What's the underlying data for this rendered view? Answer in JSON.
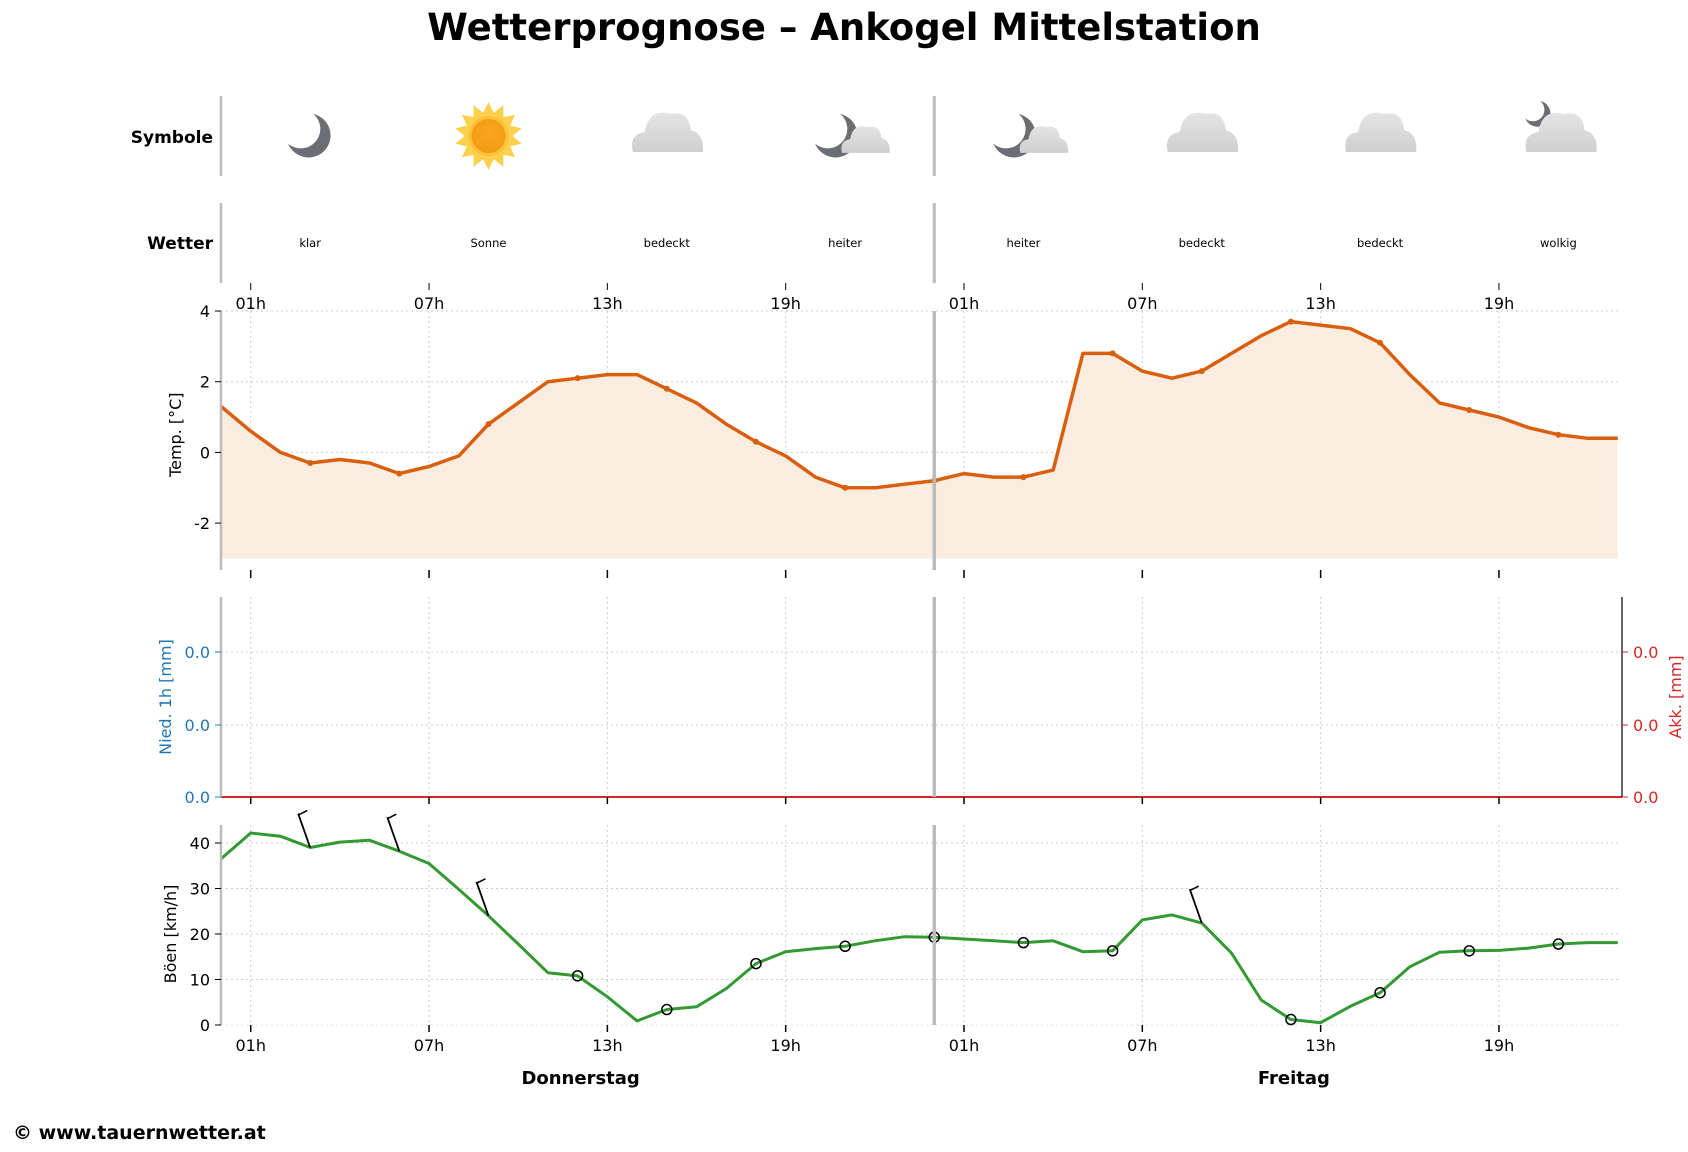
{
  "header": {
    "title": "Wetterprognose – Ankogel Mittelstation"
  },
  "footer": {
    "copyright": "© www.tauernwetter.at"
  },
  "rows": {
    "symbols_label": "Symbole",
    "weather_label": "Wetter"
  },
  "forecast_blocks": [
    {
      "hour": 3,
      "icon": "moon-icon",
      "text": "klar"
    },
    {
      "hour": 9,
      "icon": "sun-icon",
      "text": "Sonne"
    },
    {
      "hour": 15,
      "icon": "cloud-icon",
      "text": "bedeckt"
    },
    {
      "hour": 21,
      "icon": "moon-cloud-icon",
      "text": "heiter"
    },
    {
      "hour": 27,
      "icon": "moon-cloud-icon",
      "text": "heiter"
    },
    {
      "hour": 33,
      "icon": "cloud-icon",
      "text": "bedeckt"
    },
    {
      "hour": 39,
      "icon": "cloud-icon",
      "text": "bedeckt"
    },
    {
      "hour": 45,
      "icon": "moon-behind-cloud-icon",
      "text": "wolkig"
    }
  ],
  "days": [
    {
      "label": "Donnerstag",
      "center_hour": 12
    },
    {
      "label": "Freitag",
      "center_hour": 36
    }
  ],
  "colors": {
    "temperature": "#d95f0e",
    "temperature_fill": "#fbece0",
    "precip_axis": "#1f77b4",
    "accum_axis": "#d62728",
    "gusts": "#339933",
    "separator": "#bbbbbb",
    "grid": "#cccccc"
  },
  "chart_data": [
    {
      "type": "area",
      "title": "Temperatur",
      "ylabel": "Temp. [°C]",
      "ylim": [
        -3,
        4
      ],
      "yticks": [
        -2,
        0,
        2,
        4
      ],
      "xtick_labels": [
        "01h",
        "07h",
        "13h",
        "19h",
        "01h",
        "07h",
        "13h",
        "19h"
      ],
      "xtick_hours": [
        1,
        7,
        13,
        19,
        25,
        31,
        37,
        43
      ],
      "x_hours": [
        0,
        1,
        2,
        3,
        4,
        5,
        6,
        7,
        8,
        9,
        10,
        11,
        12,
        13,
        14,
        15,
        16,
        17,
        18,
        19,
        20,
        21,
        22,
        23,
        24,
        25,
        26,
        27,
        28,
        29,
        30,
        31,
        32,
        33,
        34,
        35,
        36,
        37,
        38,
        39,
        40,
        41,
        42,
        43,
        44,
        45,
        46,
        47
      ],
      "values": [
        1.3,
        0.6,
        0.0,
        -0.3,
        -0.2,
        -0.3,
        -0.6,
        -0.4,
        -0.1,
        0.8,
        1.4,
        2.0,
        2.1,
        2.2,
        2.2,
        1.8,
        1.4,
        0.8,
        0.3,
        -0.1,
        -0.7,
        -1.0,
        -1.0,
        -0.9,
        -0.8,
        -0.6,
        -0.7,
        -0.7,
        -0.5,
        2.8,
        2.8,
        2.3,
        2.1,
        2.3,
        2.8,
        3.3,
        3.7,
        3.6,
        3.5,
        3.1,
        2.2,
        1.4,
        1.2,
        1.0,
        0.7,
        0.5,
        0.4,
        0.4
      ],
      "marker_hours": [
        3,
        6,
        9,
        12,
        15,
        18,
        21,
        24,
        27,
        30,
        33,
        36,
        39,
        42,
        45
      ],
      "grid": true
    },
    {
      "type": "bar",
      "title": "Niederschlag",
      "ylabel": "Nied. 1h [mm]",
      "ylabel_right": "Akk. [mm]",
      "yticks_left": [
        "0.0",
        "0.0",
        "0.0"
      ],
      "yticks_right": [
        "0.0",
        "0.0",
        "0.0"
      ],
      "precip_1h": [
        0,
        0,
        0,
        0,
        0,
        0,
        0,
        0,
        0,
        0,
        0,
        0,
        0,
        0,
        0,
        0,
        0,
        0,
        0,
        0,
        0,
        0,
        0,
        0,
        0,
        0,
        0,
        0,
        0,
        0,
        0,
        0,
        0,
        0,
        0,
        0,
        0,
        0,
        0,
        0,
        0,
        0,
        0,
        0,
        0,
        0,
        0,
        0
      ],
      "accumulated": [
        0,
        0,
        0,
        0,
        0,
        0,
        0,
        0,
        0,
        0,
        0,
        0,
        0,
        0,
        0,
        0,
        0,
        0,
        0,
        0,
        0,
        0,
        0,
        0,
        0,
        0,
        0,
        0,
        0,
        0,
        0,
        0,
        0,
        0,
        0,
        0,
        0,
        0,
        0,
        0,
        0,
        0,
        0,
        0,
        0,
        0,
        0,
        0
      ],
      "grid": true
    },
    {
      "type": "line",
      "title": "Böen",
      "ylabel": "Böen [km/h]",
      "ylim": [
        0,
        44
      ],
      "yticks": [
        0,
        10,
        20,
        30,
        40
      ],
      "xtick_labels": [
        "01h",
        "07h",
        "13h",
        "19h",
        "01h",
        "07h",
        "13h",
        "19h"
      ],
      "xtick_hours": [
        1,
        7,
        13,
        19,
        25,
        31,
        37,
        43
      ],
      "x_hours": [
        0,
        1,
        2,
        3,
        4,
        5,
        6,
        7,
        8,
        9,
        10,
        11,
        12,
        13,
        14,
        15,
        16,
        17,
        18,
        19,
        20,
        21,
        22,
        23,
        24,
        25,
        26,
        27,
        28,
        29,
        30,
        31,
        32,
        33,
        34,
        35,
        36,
        37,
        38,
        39,
        40,
        41,
        42,
        43,
        44,
        45,
        46,
        47
      ],
      "values": [
        36.5,
        42.2,
        41.5,
        39.0,
        40.2,
        40.6,
        38.2,
        35.5,
        29.8,
        24.0,
        17.8,
        11.5,
        10.8,
        6.2,
        0.9,
        3.4,
        4.0,
        8.0,
        13.5,
        16.1,
        16.8,
        17.3,
        18.5,
        19.4,
        19.3,
        18.9,
        18.5,
        18.1,
        18.5,
        16.1,
        16.3,
        23.1,
        24.2,
        22.4,
        15.8,
        5.5,
        1.2,
        0.5,
        4.1,
        7.1,
        12.8,
        16.0,
        16.3,
        16.4,
        16.9,
        17.8,
        18.1,
        18.1
      ],
      "wind_barbs": [
        {
          "hour": 3,
          "speed_kmh": 39.0,
          "type": "barb"
        },
        {
          "hour": 6,
          "speed_kmh": 38.2,
          "type": "barb"
        },
        {
          "hour": 9,
          "speed_kmh": 24.0,
          "type": "barb"
        },
        {
          "hour": 12,
          "speed_kmh": 10.8,
          "type": "calm"
        },
        {
          "hour": 15,
          "speed_kmh": 3.4,
          "type": "calm"
        },
        {
          "hour": 18,
          "speed_kmh": 13.5,
          "type": "calm"
        },
        {
          "hour": 21,
          "speed_kmh": 17.3,
          "type": "calm"
        },
        {
          "hour": 24,
          "speed_kmh": 19.3,
          "type": "calm"
        },
        {
          "hour": 27,
          "speed_kmh": 18.1,
          "type": "calm"
        },
        {
          "hour": 30,
          "speed_kmh": 16.3,
          "type": "calm"
        },
        {
          "hour": 33,
          "speed_kmh": 22.4,
          "type": "barb"
        },
        {
          "hour": 36,
          "speed_kmh": 1.2,
          "type": "calm"
        },
        {
          "hour": 39,
          "speed_kmh": 7.1,
          "type": "calm"
        },
        {
          "hour": 42,
          "speed_kmh": 16.3,
          "type": "calm"
        },
        {
          "hour": 45,
          "speed_kmh": 17.8,
          "type": "calm"
        }
      ],
      "xlabels_days": [
        "Donnerstag",
        "Freitag"
      ],
      "grid": true
    }
  ]
}
